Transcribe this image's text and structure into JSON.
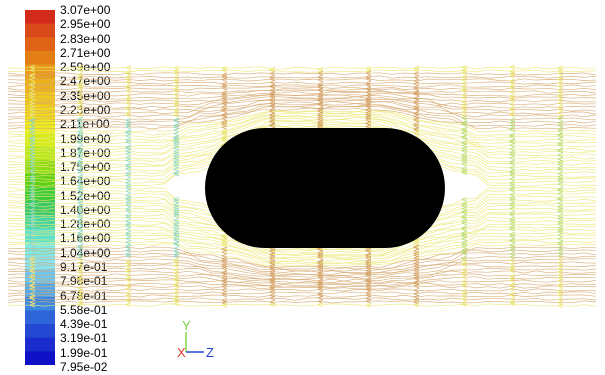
{
  "legend": {
    "labels": [
      "3.07e+00",
      "2.95e+00",
      "2.83e+00",
      "2.71e+00",
      "2.59e+00",
      "2.47e+00",
      "2.35e+00",
      "2.23e+00",
      "2.11e+00",
      "1.99e+00",
      "1.87e+00",
      "1.75e+00",
      "1.64e+00",
      "1.52e+00",
      "1.40e+00",
      "1.28e+00",
      "1.16e+00",
      "1.04e+00",
      "9.17e-01",
      "7.98e-01",
      "6.78e-01",
      "5.58e-01",
      "4.39e-01",
      "3.19e-01",
      "1.99e-01",
      "7.95e-02"
    ],
    "colors": [
      "#d42a1c",
      "#d9491a",
      "#e06418",
      "#e47f18",
      "#e99a18",
      "#edb21a",
      "#efc71c",
      "#f0d81e",
      "#ecec1e",
      "#d6ec1a",
      "#b8e81a",
      "#8edc18",
      "#5fd016",
      "#3ccc3a",
      "#3ac868",
      "#46d39e",
      "#5fe0c8",
      "#7fe9e4",
      "#88e2f2",
      "#6ec6f0",
      "#55a8ea",
      "#3d88e2",
      "#2e66da",
      "#2448d2",
      "#1a2ccc",
      "#0e10c6"
    ]
  },
  "axes": {
    "y_label": "Y",
    "x_label": "X",
    "z_label": "Z",
    "y_color": "#7ad23c",
    "x_color": "#e03a2a",
    "z_color": "#2a46d6"
  },
  "body": {
    "shape": "stadium",
    "color": "#000000"
  }
}
